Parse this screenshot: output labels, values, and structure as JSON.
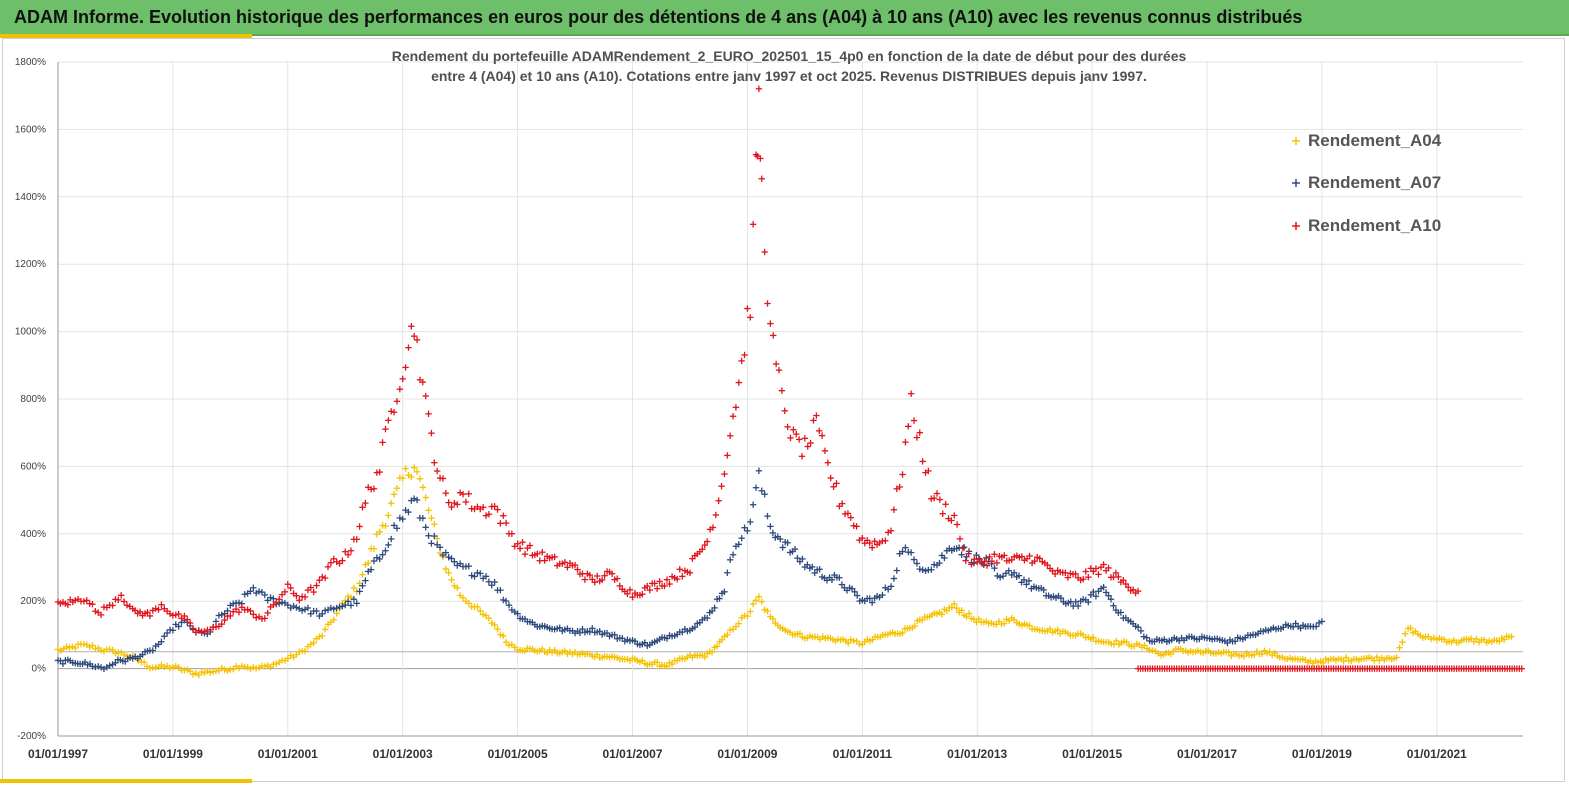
{
  "header": {
    "title": "ADAM Informe. Evolution historique des performances en euros pour des détentions de 4 ans (A04) à 10 ans (A10) avec les revenus connus distribués"
  },
  "colors": {
    "A04": "#f5c200",
    "A07": "#2e4a7d",
    "A10": "#e0141c",
    "header_bg": "#6dbf6a",
    "accent": "#f2c200"
  },
  "chart_data": {
    "type": "scatter",
    "title_line1": "Rendement du portefeuille ADAMRendement_2_EURO_202501_15_4p0  en fonction de la date de début pour des durées",
    "title_line2": "entre 4 (A04) et 10 ans (A10). Cotations entre janv 1997 et oct 2025. Revenus DISTRIBUES depuis janv 1997.",
    "xlim": [
      1997.0,
      2022.5
    ],
    "ylim": [
      -200,
      1800
    ],
    "x_ticks": [
      {
        "value": 1997,
        "label": "01/01/1997"
      },
      {
        "value": 1999,
        "label": "01/01/1999"
      },
      {
        "value": 2001,
        "label": "01/01/2001"
      },
      {
        "value": 2003,
        "label": "01/01/2003"
      },
      {
        "value": 2005,
        "label": "01/01/2005"
      },
      {
        "value": 2007,
        "label": "01/01/2007"
      },
      {
        "value": 2009,
        "label": "01/01/2009"
      },
      {
        "value": 2011,
        "label": "01/01/2011"
      },
      {
        "value": 2013,
        "label": "01/01/2013"
      },
      {
        "value": 2015,
        "label": "01/01/2015"
      },
      {
        "value": 2017,
        "label": "01/01/2017"
      },
      {
        "value": 2019,
        "label": "01/01/2019"
      },
      {
        "value": 2021,
        "label": "01/01/2021"
      }
    ],
    "y_ticks": [
      {
        "value": 1800,
        "label": "1800%"
      },
      {
        "value": 1600,
        "label": "1600%"
      },
      {
        "value": 1400,
        "label": "1400%"
      },
      {
        "value": 1200,
        "label": "1200%"
      },
      {
        "value": 1000,
        "label": "1000%"
      },
      {
        "value": 800,
        "label": "800%"
      },
      {
        "value": 600,
        "label": "600%"
      },
      {
        "value": 400,
        "label": "400%"
      },
      {
        "value": 200,
        "label": "200%"
      },
      {
        "value": 0,
        "label": "0%"
      },
      {
        "value": -200,
        "label": "-200%"
      }
    ],
    "legend_position": "top-right",
    "series": [
      {
        "name": "Rendement_A04",
        "color_key": "A04",
        "points": [
          [
            1997.0,
            55
          ],
          [
            1997.2,
            60
          ],
          [
            1997.4,
            70
          ],
          [
            1997.6,
            65
          ],
          [
            1997.8,
            55
          ],
          [
            1998.0,
            50
          ],
          [
            1998.2,
            40
          ],
          [
            1998.4,
            25
          ],
          [
            1998.6,
            5
          ],
          [
            1998.8,
            5
          ],
          [
            1999.0,
            5
          ],
          [
            1999.2,
            -5
          ],
          [
            1999.4,
            -15
          ],
          [
            1999.6,
            -10
          ],
          [
            1999.8,
            -5
          ],
          [
            2000.0,
            0
          ],
          [
            2000.2,
            10
          ],
          [
            2000.4,
            0
          ],
          [
            2000.6,
            5
          ],
          [
            2000.8,
            15
          ],
          [
            2001.0,
            30
          ],
          [
            2001.2,
            45
          ],
          [
            2001.4,
            70
          ],
          [
            2001.6,
            100
          ],
          [
            2001.8,
            150
          ],
          [
            2002.0,
            200
          ],
          [
            2002.2,
            240
          ],
          [
            2002.4,
            320
          ],
          [
            2002.6,
            410
          ],
          [
            2002.8,
            480
          ],
          [
            2003.0,
            560
          ],
          [
            2003.2,
            610
          ],
          [
            2003.4,
            500
          ],
          [
            2003.6,
            380
          ],
          [
            2003.8,
            280
          ],
          [
            2004.0,
            220
          ],
          [
            2004.2,
            190
          ],
          [
            2004.4,
            160
          ],
          [
            2004.6,
            130
          ],
          [
            2004.8,
            80
          ],
          [
            2005.0,
            60
          ],
          [
            2005.3,
            55
          ],
          [
            2005.6,
            50
          ],
          [
            2006.0,
            45
          ],
          [
            2006.3,
            40
          ],
          [
            2006.6,
            35
          ],
          [
            2007.0,
            25
          ],
          [
            2007.3,
            15
          ],
          [
            2007.6,
            10
          ],
          [
            2008.0,
            35
          ],
          [
            2008.3,
            40
          ],
          [
            2008.6,
            90
          ],
          [
            2008.8,
            130
          ],
          [
            2009.0,
            160
          ],
          [
            2009.2,
            210
          ],
          [
            2009.4,
            150
          ],
          [
            2009.7,
            110
          ],
          [
            2010.0,
            95
          ],
          [
            2010.4,
            90
          ],
          [
            2010.8,
            80
          ],
          [
            2011.0,
            75
          ],
          [
            2011.4,
            100
          ],
          [
            2011.7,
            110
          ],
          [
            2012.0,
            140
          ],
          [
            2012.3,
            160
          ],
          [
            2012.6,
            185
          ],
          [
            2012.9,
            150
          ],
          [
            2013.2,
            130
          ],
          [
            2013.6,
            145
          ],
          [
            2014.0,
            120
          ],
          [
            2014.4,
            110
          ],
          [
            2014.8,
            100
          ],
          [
            2015.2,
            80
          ],
          [
            2015.6,
            75
          ],
          [
            2016.0,
            60
          ],
          [
            2016.2,
            40
          ],
          [
            2016.5,
            55
          ],
          [
            2016.8,
            50
          ],
          [
            2017.2,
            45
          ],
          [
            2017.6,
            40
          ],
          [
            2018.0,
            50
          ],
          [
            2018.4,
            30
          ],
          [
            2018.8,
            20
          ],
          [
            2019.2,
            25
          ],
          [
            2019.6,
            30
          ],
          [
            2020.0,
            30
          ],
          [
            2020.3,
            35
          ],
          [
            2020.5,
            120
          ],
          [
            2020.8,
            90
          ],
          [
            2021.0,
            90
          ],
          [
            2021.3,
            80
          ],
          [
            2021.6,
            85
          ],
          [
            2022.0,
            80
          ],
          [
            2022.3,
            95
          ]
        ]
      },
      {
        "name": "Rendement_A07",
        "color_key": "A07",
        "points": [
          [
            1997.0,
            20
          ],
          [
            1997.3,
            20
          ],
          [
            1997.6,
            10
          ],
          [
            1997.8,
            0
          ],
          [
            1998.0,
            20
          ],
          [
            1998.3,
            30
          ],
          [
            1998.6,
            50
          ],
          [
            1998.8,
            80
          ],
          [
            1999.0,
            120
          ],
          [
            1999.2,
            140
          ],
          [
            1999.4,
            110
          ],
          [
            1999.6,
            100
          ],
          [
            1999.8,
            150
          ],
          [
            2000.0,
            180
          ],
          [
            2000.2,
            200
          ],
          [
            2000.4,
            240
          ],
          [
            2000.6,
            210
          ],
          [
            2000.8,
            200
          ],
          [
            2001.0,
            190
          ],
          [
            2001.2,
            180
          ],
          [
            2001.4,
            170
          ],
          [
            2001.6,
            160
          ],
          [
            2001.8,
            180
          ],
          [
            2002.0,
            190
          ],
          [
            2002.2,
            200
          ],
          [
            2002.4,
            280
          ],
          [
            2002.6,
            330
          ],
          [
            2002.8,
            400
          ],
          [
            2003.0,
            450
          ],
          [
            2003.2,
            500
          ],
          [
            2003.4,
            420
          ],
          [
            2003.6,
            360
          ],
          [
            2003.8,
            320
          ],
          [
            2004.0,
            300
          ],
          [
            2004.2,
            290
          ],
          [
            2004.4,
            280
          ],
          [
            2004.6,
            250
          ],
          [
            2004.8,
            200
          ],
          [
            2005.0,
            160
          ],
          [
            2005.3,
            130
          ],
          [
            2005.6,
            120
          ],
          [
            2006.0,
            110
          ],
          [
            2006.3,
            115
          ],
          [
            2006.6,
            100
          ],
          [
            2007.0,
            80
          ],
          [
            2007.3,
            70
          ],
          [
            2007.6,
            95
          ],
          [
            2008.0,
            120
          ],
          [
            2008.3,
            150
          ],
          [
            2008.6,
            240
          ],
          [
            2008.8,
            380
          ],
          [
            2009.0,
            410
          ],
          [
            2009.2,
            570
          ],
          [
            2009.4,
            420
          ],
          [
            2009.7,
            360
          ],
          [
            2010.0,
            310
          ],
          [
            2010.3,
            280
          ],
          [
            2010.6,
            260
          ],
          [
            2011.0,
            200
          ],
          [
            2011.3,
            210
          ],
          [
            2011.5,
            250
          ],
          [
            2011.7,
            360
          ],
          [
            2011.9,
            320
          ],
          [
            2012.1,
            300
          ],
          [
            2012.3,
            310
          ],
          [
            2012.6,
            370
          ],
          [
            2012.9,
            330
          ],
          [
            2013.2,
            310
          ],
          [
            2013.4,
            260
          ],
          [
            2013.6,
            290
          ],
          [
            2013.9,
            250
          ],
          [
            2014.2,
            220
          ],
          [
            2014.5,
            200
          ],
          [
            2014.8,
            190
          ],
          [
            2015.2,
            240
          ],
          [
            2015.5,
            160
          ],
          [
            2015.8,
            120
          ],
          [
            2016.0,
            80
          ],
          [
            2016.3,
            85
          ],
          [
            2016.6,
            90
          ],
          [
            2017.0,
            90
          ],
          [
            2017.4,
            80
          ],
          [
            2017.8,
            100
          ],
          [
            2018.2,
            120
          ],
          [
            2018.5,
            130
          ],
          [
            2018.8,
            120
          ],
          [
            2019.0,
            140
          ]
        ]
      },
      {
        "name": "Rendement_A10",
        "color_key": "A10",
        "points": [
          [
            1997.0,
            190
          ],
          [
            1997.3,
            200
          ],
          [
            1997.5,
            210
          ],
          [
            1997.7,
            160
          ],
          [
            1997.9,
            190
          ],
          [
            1998.1,
            220
          ],
          [
            1998.3,
            170
          ],
          [
            1998.6,
            160
          ],
          [
            1998.8,
            190
          ],
          [
            1999.0,
            160
          ],
          [
            1999.2,
            150
          ],
          [
            1999.4,
            110
          ],
          [
            1999.6,
            110
          ],
          [
            1999.8,
            130
          ],
          [
            2000.0,
            160
          ],
          [
            2000.2,
            180
          ],
          [
            2000.4,
            160
          ],
          [
            2000.6,
            150
          ],
          [
            2000.8,
            200
          ],
          [
            2001.0,
            240
          ],
          [
            2001.2,
            210
          ],
          [
            2001.4,
            230
          ],
          [
            2001.6,
            260
          ],
          [
            2001.8,
            320
          ],
          [
            2002.0,
            330
          ],
          [
            2002.2,
            400
          ],
          [
            2002.4,
            520
          ],
          [
            2002.6,
            600
          ],
          [
            2002.8,
            760
          ],
          [
            2003.0,
            900
          ],
          [
            2003.2,
            1020
          ],
          [
            2003.4,
            780
          ],
          [
            2003.6,
            600
          ],
          [
            2003.8,
            480
          ],
          [
            2004.0,
            520
          ],
          [
            2004.2,
            490
          ],
          [
            2004.4,
            470
          ],
          [
            2004.6,
            480
          ],
          [
            2004.8,
            420
          ],
          [
            2005.0,
            370
          ],
          [
            2005.3,
            340
          ],
          [
            2005.6,
            320
          ],
          [
            2006.0,
            300
          ],
          [
            2006.3,
            260
          ],
          [
            2006.6,
            280
          ],
          [
            2007.0,
            220
          ],
          [
            2007.3,
            240
          ],
          [
            2007.6,
            260
          ],
          [
            2008.0,
            300
          ],
          [
            2008.3,
            380
          ],
          [
            2008.5,
            500
          ],
          [
            2008.7,
            700
          ],
          [
            2008.9,
            900
          ],
          [
            2009.05,
            1100
          ],
          [
            2009.15,
            1450
          ],
          [
            2009.2,
            1670
          ],
          [
            2009.25,
            1420
          ],
          [
            2009.4,
            1000
          ],
          [
            2009.6,
            800
          ],
          [
            2009.8,
            680
          ],
          [
            2010.0,
            650
          ],
          [
            2010.2,
            720
          ],
          [
            2010.4,
            600
          ],
          [
            2010.6,
            500
          ],
          [
            2010.8,
            450
          ],
          [
            2011.0,
            380
          ],
          [
            2011.3,
            370
          ],
          [
            2011.5,
            420
          ],
          [
            2011.7,
            600
          ],
          [
            2011.85,
            780
          ],
          [
            2012.0,
            680
          ],
          [
            2012.2,
            520
          ],
          [
            2012.4,
            480
          ],
          [
            2012.6,
            450
          ],
          [
            2012.8,
            330
          ],
          [
            2013.0,
            310
          ],
          [
            2013.3,
            330
          ],
          [
            2013.6,
            320
          ],
          [
            2014.0,
            330
          ],
          [
            2014.4,
            280
          ],
          [
            2014.8,
            270
          ],
          [
            2015.2,
            300
          ],
          [
            2015.5,
            260
          ],
          [
            2015.8,
            230
          ]
        ],
        "flat_segment": {
          "x_start": 2015.8,
          "x_end": 2022.5,
          "value": 0
        }
      }
    ]
  }
}
